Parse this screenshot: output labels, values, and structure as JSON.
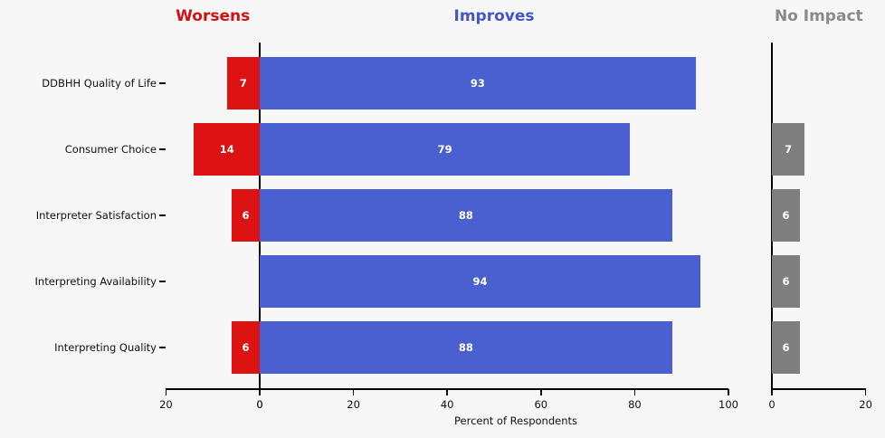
{
  "colors": {
    "background": "#f7f7f7",
    "axis": "#000000",
    "tick_label": "#111111",
    "category_label": "#111111",
    "value_label": "#ffffff",
    "xlabel": "#111111"
  },
  "chart_data": {
    "type": "bar",
    "orientation": "horizontal",
    "xlabel": "Percent of Respondents",
    "categories": [
      "DDBHH Quality of Life",
      "Consumer Choice",
      "Interpreter Satisfaction",
      "Interpreting Availability",
      "Interpreting Quality"
    ],
    "series": [
      {
        "name": "Worsens",
        "color": "#dd1212",
        "title_color": "#d11111",
        "values": [
          7,
          14,
          6,
          0,
          6
        ]
      },
      {
        "name": "Improves",
        "color": "#4a5fd0",
        "title_color": "#4355c8",
        "values": [
          93,
          79,
          88,
          94,
          88
        ]
      },
      {
        "name": "No Impact",
        "color": "#7f7f7f",
        "title_color": "#8a8a8a",
        "values": [
          0,
          7,
          6,
          6,
          6
        ]
      }
    ],
    "panels": [
      {
        "series": "Worsens",
        "xlim": [
          20,
          0
        ],
        "ticks": [
          20,
          0
        ],
        "reversed": true
      },
      {
        "series": "Improves",
        "xlim": [
          0,
          100
        ],
        "ticks": [
          0,
          20,
          40,
          60,
          80,
          100
        ],
        "reversed": false
      },
      {
        "series": "No Impact",
        "xlim": [
          0,
          20
        ],
        "ticks": [
          0,
          20
        ],
        "reversed": false
      }
    ],
    "grid": false,
    "legend": "none",
    "value_labels_shown": true
  }
}
